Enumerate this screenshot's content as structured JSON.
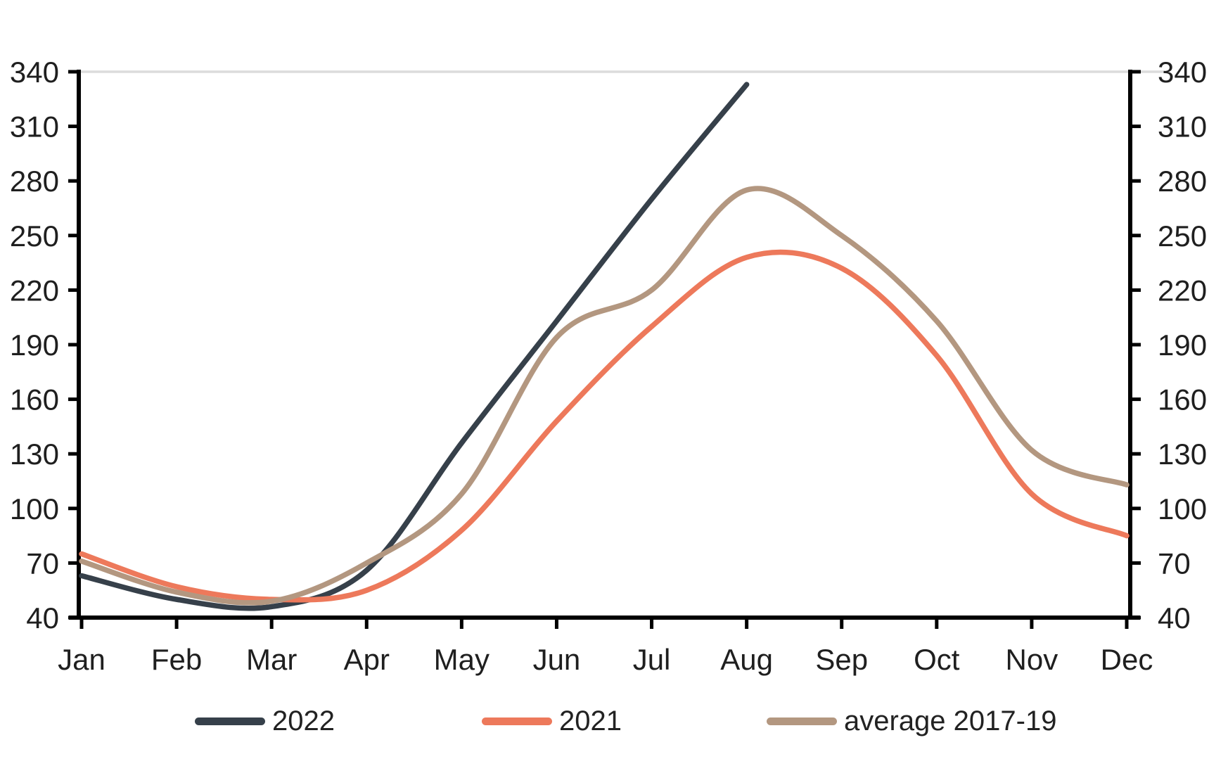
{
  "chart_data": {
    "type": "line",
    "title": "",
    "categories": [
      "Jan",
      "Feb",
      "Mar",
      "Apr",
      "May",
      "Jun",
      "Jul",
      "Aug",
      "Sep",
      "Oct",
      "Nov",
      "Dec"
    ],
    "y_ticks": [
      40,
      70,
      100,
      130,
      160,
      190,
      220,
      250,
      280,
      310,
      340
    ],
    "ylim": [
      40,
      340
    ],
    "y_axis_sides": "both",
    "gridlines_y": [
      340
    ],
    "legend_position": "bottom",
    "series": [
      {
        "name": "2022",
        "color": "#36404A",
        "values": [
          63,
          50,
          46,
          66,
          136,
          203,
          270,
          333
        ]
      },
      {
        "name": "2021",
        "color": "#ED795B",
        "values": [
          75,
          57,
          50,
          55,
          88,
          148,
          200,
          238,
          232,
          184,
          108,
          85
        ]
      },
      {
        "name": "average 2017-19",
        "color": "#B39780",
        "values": [
          71,
          54,
          49,
          70,
          108,
          194,
          220,
          275,
          250,
          203,
          132,
          113
        ]
      }
    ]
  },
  "colors": {
    "axis": "#000000",
    "tick_label": "#1f1f1f",
    "gridline": "#dcdcdc",
    "background": "#ffffff",
    "legend_text": "#222222"
  }
}
